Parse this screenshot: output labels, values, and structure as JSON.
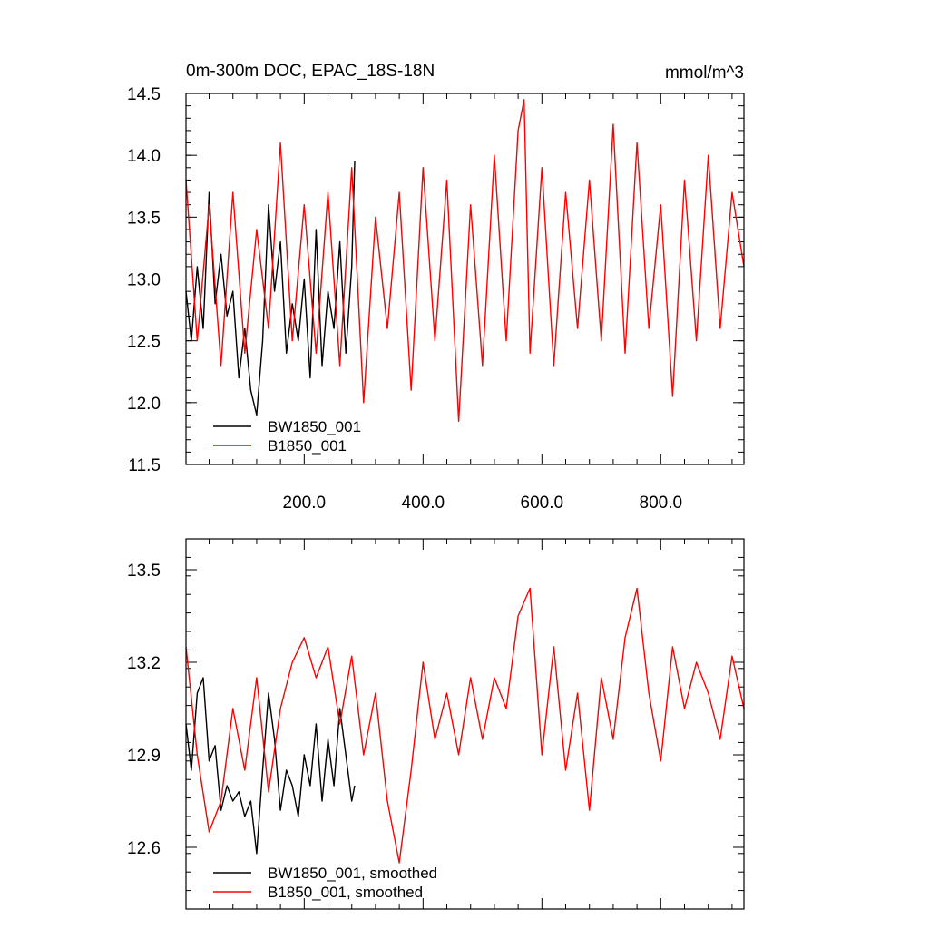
{
  "chart_data": [
    {
      "type": "line",
      "title": "0m-300m DOC, EPAC_18S-18N",
      "units": "mmol/m^3",
      "xlim": [
        1,
        940
      ],
      "ylim": [
        11.5,
        14.5
      ],
      "x_ticks": [
        "200.0",
        "400.0",
        "600.0",
        "800.0"
      ],
      "y_ticks": [
        "11.5",
        "12.0",
        "12.5",
        "13.0",
        "13.5",
        "14.0",
        "14.5"
      ],
      "legend_position": "bottom-left",
      "series": [
        {
          "name": "BW1850_001",
          "color": "#000000",
          "x": [
            1,
            10,
            20,
            30,
            40,
            50,
            60,
            70,
            80,
            90,
            100,
            110,
            120,
            130,
            140,
            150,
            160,
            170,
            180,
            190,
            200,
            210,
            220,
            230,
            240,
            250,
            260,
            270,
            280,
            285
          ],
          "values": [
            12.9,
            12.5,
            13.1,
            12.6,
            13.7,
            12.8,
            13.2,
            12.7,
            12.9,
            12.2,
            12.6,
            12.1,
            11.9,
            12.5,
            13.6,
            12.9,
            13.3,
            12.4,
            12.8,
            12.5,
            13.0,
            12.2,
            13.4,
            12.3,
            12.9,
            12.6,
            13.3,
            12.4,
            13.1,
            13.95
          ]
        },
        {
          "name": "B1850_001",
          "color": "#ff0000",
          "x": [
            1,
            20,
            40,
            60,
            80,
            100,
            120,
            140,
            160,
            180,
            200,
            220,
            240,
            260,
            280,
            300,
            320,
            340,
            360,
            380,
            400,
            420,
            440,
            460,
            480,
            500,
            520,
            540,
            560,
            570,
            580,
            600,
            620,
            640,
            660,
            680,
            700,
            720,
            740,
            760,
            780,
            800,
            820,
            840,
            860,
            880,
            900,
            920,
            940
          ],
          "values": [
            13.8,
            12.5,
            13.6,
            12.3,
            13.7,
            12.4,
            13.4,
            12.6,
            14.1,
            12.5,
            13.6,
            12.4,
            13.7,
            12.3,
            13.9,
            12.0,
            13.5,
            12.6,
            13.7,
            12.1,
            13.9,
            12.5,
            13.8,
            11.85,
            13.6,
            12.3,
            14.0,
            12.5,
            14.2,
            14.45,
            12.4,
            13.9,
            12.3,
            13.7,
            12.6,
            13.8,
            12.5,
            14.25,
            12.4,
            14.1,
            12.6,
            13.6,
            12.05,
            13.8,
            12.5,
            14.0,
            12.6,
            13.7,
            13.1
          ]
        }
      ]
    },
    {
      "type": "line",
      "xlim": [
        1,
        940
      ],
      "ylim": [
        12.4,
        13.6
      ],
      "y_ticks": [
        "12.6",
        "12.9",
        "13.2",
        "13.5"
      ],
      "legend_position": "bottom-left",
      "series": [
        {
          "name": "BW1850_001, smoothed",
          "color": "#000000",
          "x": [
            1,
            10,
            20,
            30,
            40,
            50,
            60,
            70,
            80,
            90,
            100,
            110,
            120,
            130,
            140,
            150,
            160,
            170,
            180,
            190,
            200,
            210,
            220,
            230,
            240,
            250,
            260,
            270,
            280,
            285
          ],
          "values": [
            13.0,
            12.85,
            13.1,
            13.15,
            12.88,
            12.93,
            12.72,
            12.8,
            12.75,
            12.78,
            12.7,
            12.75,
            12.58,
            12.85,
            13.1,
            12.95,
            12.72,
            12.85,
            12.8,
            12.7,
            12.9,
            12.8,
            13.0,
            12.75,
            12.95,
            12.8,
            13.05,
            12.9,
            12.75,
            12.8
          ]
        },
        {
          "name": "B1850_001, smoothed",
          "color": "#ff0000",
          "x": [
            1,
            20,
            40,
            60,
            80,
            100,
            120,
            140,
            160,
            180,
            200,
            220,
            240,
            260,
            280,
            300,
            320,
            340,
            360,
            380,
            400,
            420,
            440,
            460,
            480,
            500,
            520,
            540,
            560,
            580,
            600,
            620,
            640,
            660,
            680,
            700,
            720,
            740,
            760,
            780,
            800,
            820,
            840,
            860,
            880,
            900,
            920,
            940
          ],
          "values": [
            13.25,
            12.9,
            12.65,
            12.75,
            13.05,
            12.85,
            13.15,
            12.78,
            13.05,
            13.2,
            13.28,
            13.15,
            13.25,
            13.0,
            13.22,
            12.9,
            13.1,
            12.75,
            12.55,
            12.85,
            13.2,
            12.95,
            13.1,
            12.9,
            13.15,
            12.95,
            13.15,
            13.05,
            13.35,
            13.44,
            12.9,
            13.25,
            12.85,
            13.1,
            12.72,
            13.15,
            12.95,
            13.28,
            13.44,
            13.1,
            12.88,
            13.25,
            13.05,
            13.2,
            13.1,
            12.95,
            13.22,
            13.05
          ]
        }
      ]
    }
  ]
}
